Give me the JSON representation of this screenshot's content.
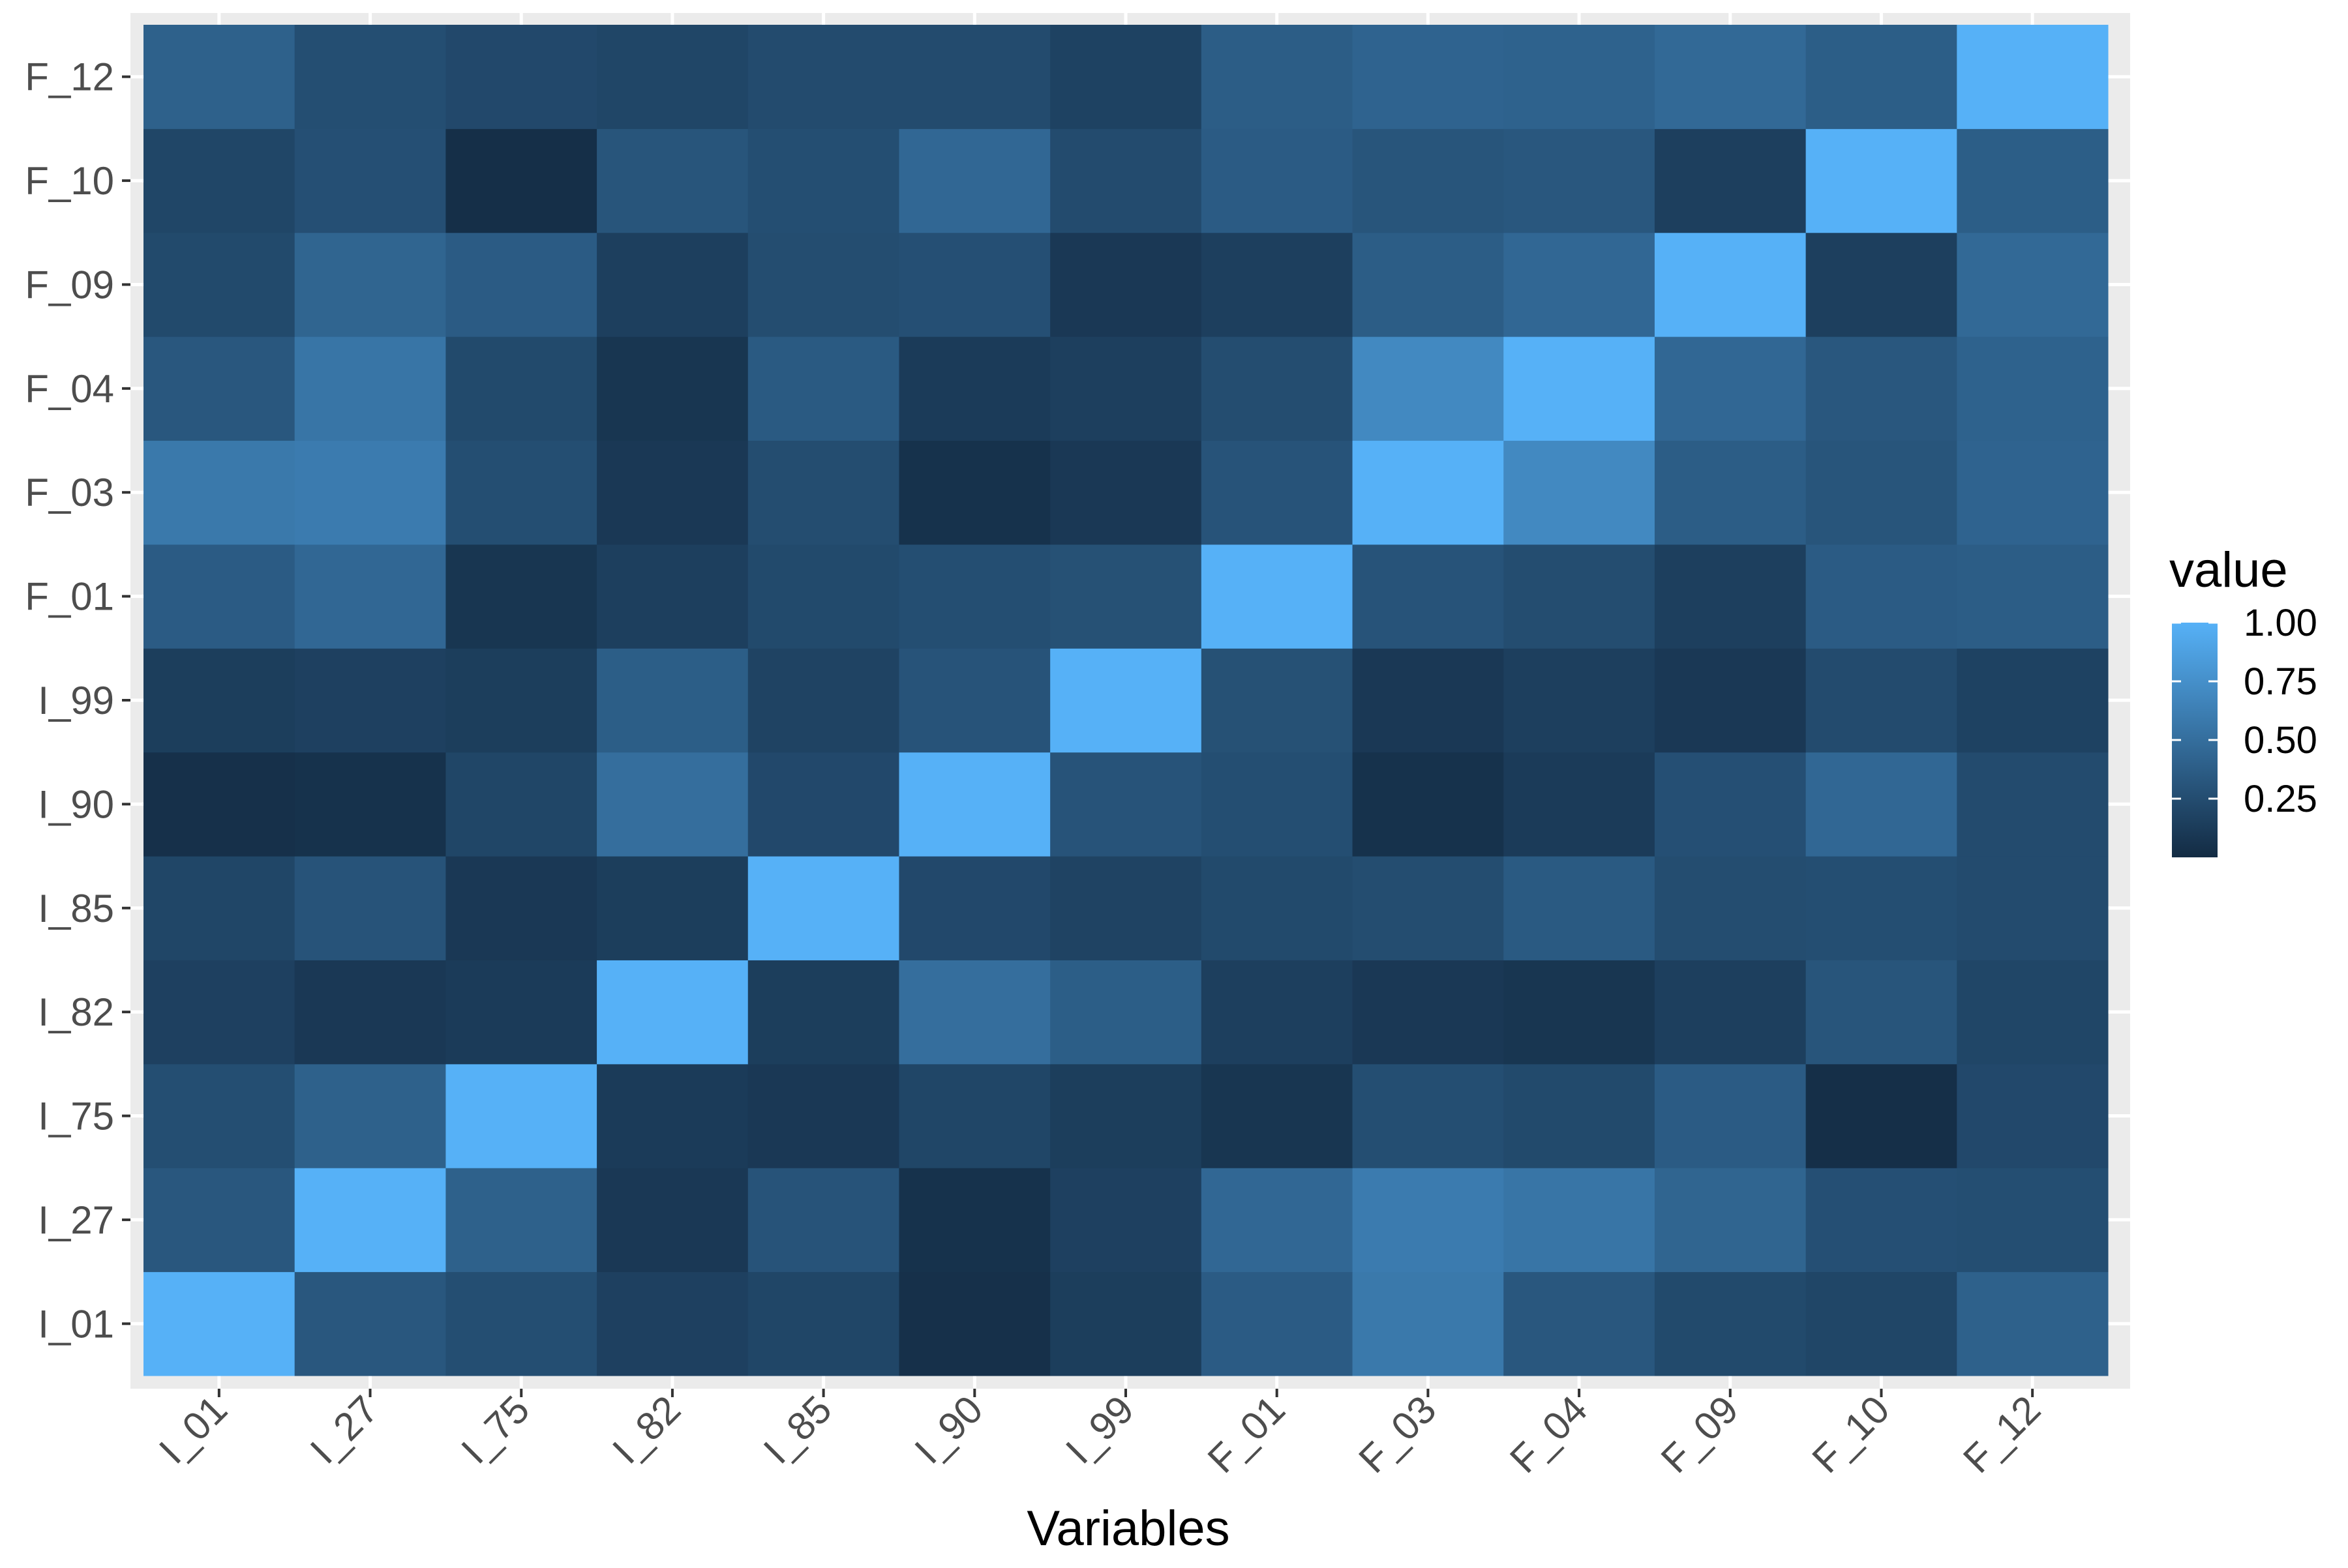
{
  "chart_data": {
    "type": "heatmap",
    "title": "",
    "xlabel": "Variables",
    "ylabel": "",
    "x_categories": [
      "I_01",
      "I_27",
      "I_75",
      "I_82",
      "I_85",
      "I_90",
      "I_99",
      "F_01",
      "F_03",
      "F_04",
      "F_09",
      "F_10",
      "F_12"
    ],
    "y_categories": [
      "I_01",
      "I_27",
      "I_75",
      "I_82",
      "I_85",
      "I_90",
      "I_99",
      "F_01",
      "F_03",
      "F_04",
      "F_09",
      "F_10",
      "F_12"
    ],
    "values": [
      [
        1.0,
        0.33,
        0.26,
        0.16,
        0.2,
        0.04,
        0.14,
        0.36,
        0.58,
        0.33,
        0.23,
        0.2,
        0.4
      ],
      [
        0.33,
        1.0,
        0.4,
        0.1,
        0.3,
        0.05,
        0.16,
        0.45,
        0.6,
        0.55,
        0.43,
        0.27,
        0.26
      ],
      [
        0.26,
        0.4,
        1.0,
        0.12,
        0.1,
        0.2,
        0.14,
        0.08,
        0.26,
        0.23,
        0.36,
        0.03,
        0.22
      ],
      [
        0.16,
        0.1,
        0.12,
        1.0,
        0.14,
        0.5,
        0.38,
        0.15,
        0.1,
        0.08,
        0.15,
        0.31,
        0.2
      ],
      [
        0.2,
        0.3,
        0.1,
        0.14,
        1.0,
        0.22,
        0.18,
        0.23,
        0.25,
        0.35,
        0.25,
        0.26,
        0.24
      ],
      [
        0.04,
        0.05,
        0.2,
        0.5,
        0.22,
        1.0,
        0.3,
        0.26,
        0.05,
        0.12,
        0.27,
        0.45,
        0.24
      ],
      [
        0.14,
        0.16,
        0.14,
        0.38,
        0.18,
        0.3,
        1.0,
        0.28,
        0.1,
        0.15,
        0.1,
        0.24,
        0.17
      ],
      [
        0.36,
        0.45,
        0.08,
        0.15,
        0.23,
        0.26,
        0.28,
        1.0,
        0.3,
        0.25,
        0.15,
        0.36,
        0.37
      ],
      [
        0.58,
        0.6,
        0.26,
        0.1,
        0.25,
        0.05,
        0.1,
        0.3,
        1.0,
        0.7,
        0.37,
        0.31,
        0.42
      ],
      [
        0.33,
        0.55,
        0.23,
        0.08,
        0.35,
        0.12,
        0.15,
        0.25,
        0.7,
        1.0,
        0.45,
        0.33,
        0.41
      ],
      [
        0.23,
        0.43,
        0.36,
        0.15,
        0.25,
        0.27,
        0.1,
        0.15,
        0.37,
        0.45,
        1.0,
        0.15,
        0.46
      ],
      [
        0.2,
        0.27,
        0.03,
        0.31,
        0.26,
        0.45,
        0.24,
        0.36,
        0.31,
        0.33,
        0.15,
        1.0,
        0.38
      ],
      [
        0.4,
        0.26,
        0.22,
        0.2,
        0.24,
        0.24,
        0.17,
        0.37,
        0.42,
        0.41,
        0.46,
        0.38,
        1.0
      ]
    ],
    "value_range": [
      0.0,
      1.0
    ],
    "grid": true,
    "legend": {
      "title": "value",
      "position": "right",
      "ticks": [
        1.0,
        0.75,
        0.5,
        0.25
      ],
      "tick_labels": [
        "1.00",
        "0.75",
        "0.50",
        "0.25"
      ]
    },
    "colors": {
      "low": "#132B43",
      "high": "#56B1F7",
      "panel_background": "#EBEBEB",
      "grid": "#FFFFFF",
      "tick_text": "#4D4D4D"
    }
  }
}
